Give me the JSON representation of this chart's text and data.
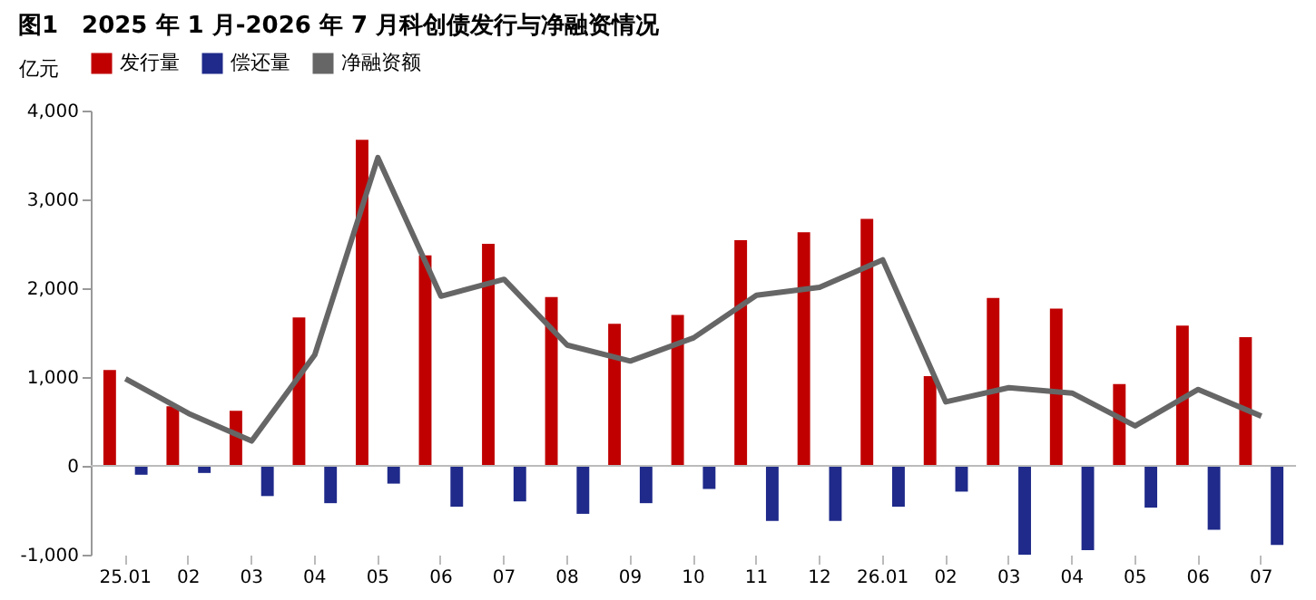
{
  "chart_data": {
    "type": "bar",
    "title": "图1　2025 年 1 月-2026 年 7 月科创债发行与净融资情况",
    "ylabel": "亿元",
    "categories": [
      "25.01",
      "02",
      "03",
      "04",
      "05",
      "06",
      "07",
      "08",
      "09",
      "10",
      "11",
      "12",
      "26.01",
      "02",
      "03",
      "04",
      "05",
      "06",
      "07"
    ],
    "series": [
      {
        "name": "发行量",
        "color": "#c00000",
        "values": [
          1080,
          670,
          620,
          1670,
          3670,
          2370,
          2500,
          1900,
          1600,
          1700,
          2540,
          2630,
          2780,
          1010,
          1890,
          1770,
          920,
          1580,
          1450
        ]
      },
      {
        "name": "偿还量",
        "color": "#1f2a8a",
        "values": [
          -100,
          -80,
          -340,
          -420,
          -200,
          -460,
          -400,
          -540,
          -420,
          -260,
          -620,
          -620,
          -460,
          -290,
          -1000,
          -950,
          -470,
          -720,
          -890
        ]
      },
      {
        "name": "净融资额",
        "type": "line",
        "color": "#666666",
        "values": [
          980,
          590,
          280,
          1250,
          3470,
          1910,
          2100,
          1360,
          1180,
          1440,
          1920,
          2010,
          2320,
          720,
          880,
          820,
          450,
          860,
          560
        ]
      }
    ],
    "ylim": [
      -1000,
      4000
    ],
    "yticks": [
      {
        "value": -1000,
        "label": "-1,000"
      },
      0,
      {
        "value": 1000,
        "label": "1,000"
      },
      {
        "value": 2000,
        "label": "2,000"
      },
      {
        "value": 3000,
        "label": "3,000"
      },
      {
        "value": 4000,
        "label": "4,000"
      }
    ],
    "ref_lines": [
      {
        "axis": "y",
        "value": 0,
        "color": "#bbbbbb"
      }
    ],
    "grid": false,
    "line_style": "solid",
    "legend": "top",
    "marker": "none"
  }
}
